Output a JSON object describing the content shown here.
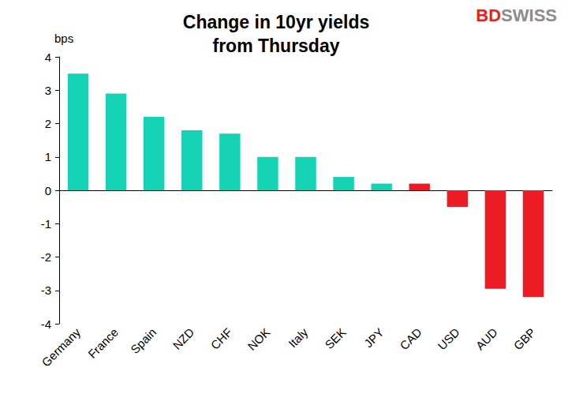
{
  "chart_data": {
    "type": "bar",
    "title": "Change in 10yr yields\nfrom Thursday",
    "y_label": "bps",
    "annotations": [
      "BDSWISS"
    ],
    "categories": [
      "Germany",
      "France",
      "Spain",
      "NZD",
      "CHF",
      "NOK",
      "Italy",
      "SEK",
      "JPY",
      "CAD",
      "USD",
      "AUD",
      "GBP"
    ],
    "values": [
      3.5,
      2.9,
      2.2,
      1.8,
      1.7,
      1.0,
      1.0,
      0.4,
      0.2,
      0.2,
      -0.5,
      -2.95,
      -3.2
    ],
    "colors": [
      "#14d3b5",
      "#14d3b5",
      "#14d3b5",
      "#14d3b5",
      "#14d3b5",
      "#14d3b5",
      "#14d3b5",
      "#14d3b5",
      "#14d3b5",
      "#ed1c24",
      "#ed1c24",
      "#ed1c24",
      "#ed1c24"
    ],
    "ylim": [
      -4,
      4
    ],
    "yticks": [
      -4,
      -3,
      -2,
      -1,
      0,
      1,
      2,
      3,
      4
    ],
    "grid": false
  }
}
